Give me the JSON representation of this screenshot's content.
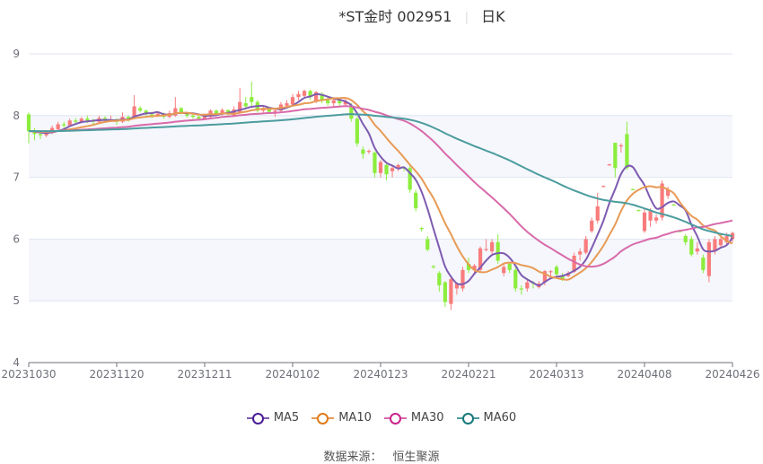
{
  "header": {
    "title": "*ST金时 002951",
    "period": "日K"
  },
  "source": {
    "label": "数据来源：",
    "value": "恒生聚源"
  },
  "colors": {
    "up": "#f87c7c",
    "down": "#8ced3c",
    "grid": "#e0e6f1",
    "band": "#f5f7fc"
  },
  "chart_data": {
    "type": "candlestick",
    "ylim": [
      4,
      9
    ],
    "yticks": [
      4,
      5,
      6,
      7,
      8,
      9
    ],
    "xtick_labels": [
      "20231030",
      "20231120",
      "20231211",
      "20240102",
      "20240123",
      "20240221",
      "20240313",
      "20240408",
      "20240426"
    ],
    "xtick_every": 15,
    "grid": true,
    "legend_position": "bottom",
    "ohlc_format": [
      "open",
      "close",
      "low",
      "high"
    ],
    "candles": [
      [
        8.02,
        7.75,
        7.55,
        8.05
      ],
      [
        7.75,
        7.7,
        7.6,
        7.8
      ],
      [
        7.7,
        7.68,
        7.62,
        7.74
      ],
      [
        7.68,
        7.72,
        7.65,
        7.76
      ],
      [
        7.72,
        7.8,
        7.7,
        7.84
      ],
      [
        7.78,
        7.86,
        7.75,
        7.9
      ],
      [
        7.86,
        7.84,
        7.8,
        7.9
      ],
      [
        7.84,
        7.92,
        7.82,
        7.95
      ],
      [
        7.92,
        7.9,
        7.86,
        7.96
      ],
      [
        7.9,
        7.95,
        7.88,
        7.98
      ],
      [
        7.95,
        7.92,
        7.88,
        8.0
      ],
      [
        7.92,
        7.9,
        7.86,
        7.95
      ],
      [
        7.9,
        7.96,
        7.88,
        8.0
      ],
      [
        7.96,
        7.92,
        7.9,
        7.99
      ],
      [
        7.92,
        7.94,
        7.9,
        8.0
      ],
      [
        7.94,
        7.9,
        7.85,
        7.96
      ],
      [
        7.9,
        7.98,
        7.88,
        8.05
      ],
      [
        7.98,
        7.95,
        7.9,
        8.0
      ],
      [
        7.95,
        8.15,
        7.94,
        8.33
      ],
      [
        8.12,
        8.08,
        8.05,
        8.15
      ],
      [
        8.08,
        8.02,
        8.0,
        8.1
      ],
      [
        8.02,
        8.0,
        7.96,
        8.06
      ],
      [
        8.0,
        8.03,
        7.98,
        8.06
      ],
      [
        8.03,
        7.98,
        7.95,
        8.05
      ],
      [
        7.98,
        8.04,
        7.96,
        8.08
      ],
      [
        8.0,
        8.12,
        7.98,
        8.3
      ],
      [
        8.12,
        8.05,
        8.02,
        8.14
      ],
      [
        8.05,
        8.0,
        7.97,
        8.06
      ],
      [
        8.0,
        7.98,
        7.95,
        8.02
      ],
      [
        7.98,
        7.95,
        7.92,
        8.0
      ],
      [
        7.95,
        8.0,
        7.93,
        8.03
      ],
      [
        7.98,
        8.08,
        7.96,
        8.1
      ],
      [
        8.08,
        8.03,
        8.0,
        8.1
      ],
      [
        8.03,
        8.09,
        8.0,
        8.12
      ],
      [
        8.09,
        8.02,
        7.98,
        8.1
      ],
      [
        8.0,
        8.1,
        7.98,
        8.15
      ],
      [
        8.05,
        8.22,
        8.03,
        8.45
      ],
      [
        8.2,
        8.15,
        8.1,
        8.3
      ],
      [
        8.3,
        8.22,
        8.15,
        8.55
      ],
      [
        8.22,
        8.08,
        8.05,
        8.25
      ],
      [
        8.08,
        8.12,
        8.05,
        8.15
      ],
      [
        8.12,
        8.06,
        8.03,
        8.15
      ],
      [
        8.06,
        8.08,
        7.98,
        8.12
      ],
      [
        8.08,
        8.18,
        8.05,
        8.22
      ],
      [
        8.16,
        8.2,
        8.12,
        8.25
      ],
      [
        8.18,
        8.3,
        8.16,
        8.35
      ],
      [
        8.3,
        8.35,
        8.25,
        8.4
      ],
      [
        8.32,
        8.4,
        8.28,
        8.42
      ],
      [
        8.4,
        8.3,
        8.25,
        8.42
      ],
      [
        8.22,
        8.38,
        8.2,
        8.4
      ],
      [
        8.35,
        8.25,
        8.2,
        8.38
      ],
      [
        8.25,
        8.2,
        8.16,
        8.3
      ],
      [
        8.2,
        8.25,
        8.15,
        8.3
      ],
      [
        8.25,
        8.2,
        8.15,
        8.28
      ],
      [
        8.18,
        8.24,
        8.15,
        8.28
      ],
      [
        8.15,
        7.95,
        7.9,
        8.2
      ],
      [
        7.95,
        7.55,
        7.5,
        7.98
      ],
      [
        7.45,
        7.38,
        7.3,
        7.5
      ],
      [
        7.42,
        7.43,
        7.38,
        7.45
      ],
      [
        7.4,
        7.07,
        7.0,
        7.42
      ],
      [
        7.07,
        7.25,
        7.0,
        7.28
      ],
      [
        7.2,
        7.05,
        6.95,
        7.25
      ],
      [
        7.1,
        7.15,
        7.0,
        7.2
      ],
      [
        7.15,
        7.2,
        7.1,
        7.22
      ],
      [
        7.16,
        7.15,
        7.1,
        7.18
      ],
      [
        7.15,
        6.8,
        6.75,
        7.2
      ],
      [
        6.75,
        6.5,
        6.45,
        6.8
      ],
      [
        6.18,
        6.17,
        6.12,
        6.2
      ],
      [
        6.0,
        5.83,
        5.8,
        6.05
      ],
      [
        5.56,
        5.55,
        5.52,
        5.58
      ],
      [
        5.45,
        5.25,
        5.15,
        5.48
      ],
      [
        5.3,
        4.98,
        4.9,
        5.32
      ],
      [
        4.95,
        5.35,
        4.85,
        5.4
      ],
      [
        5.2,
        5.28,
        5.1,
        5.3
      ],
      [
        5.2,
        5.5,
        5.15,
        5.55
      ],
      [
        5.6,
        5.5,
        5.45,
        5.7
      ],
      [
        5.5,
        5.57,
        5.45,
        5.6
      ],
      [
        5.5,
        5.85,
        5.48,
        5.88
      ],
      [
        5.83,
        5.84,
        5.8,
        6.0
      ],
      [
        5.8,
        5.95,
        5.75,
        6.0
      ],
      [
        5.95,
        5.65,
        5.6,
        6.08
      ],
      [
        5.45,
        5.55,
        5.4,
        5.6
      ],
      [
        5.6,
        5.5,
        5.45,
        5.62
      ],
      [
        5.5,
        5.2,
        5.15,
        5.55
      ],
      [
        5.2,
        5.19,
        5.1,
        5.25
      ],
      [
        5.2,
        5.3,
        5.15,
        5.35
      ],
      [
        5.3,
        5.28,
        5.2,
        5.32
      ],
      [
        5.22,
        5.28,
        5.2,
        5.32
      ],
      [
        5.3,
        5.48,
        5.25,
        5.5
      ],
      [
        5.47,
        5.48,
        5.4,
        5.5
      ],
      [
        5.55,
        5.43,
        5.4,
        5.58
      ],
      [
        5.4,
        5.35,
        5.32,
        5.45
      ],
      [
        5.4,
        5.45,
        5.38,
        5.48
      ],
      [
        5.47,
        5.73,
        5.45,
        5.78
      ],
      [
        5.75,
        5.8,
        5.65,
        5.85
      ],
      [
        5.78,
        6.0,
        5.75,
        6.05
      ],
      [
        6.13,
        6.3,
        6.1,
        6.35
      ],
      [
        6.3,
        6.53,
        6.25,
        6.75
      ],
      [
        6.85,
        6.86,
        6.84,
        6.87
      ],
      [
        7.2,
        7.21,
        7.19,
        7.22
      ],
      [
        7.56,
        7.15,
        7.0,
        7.56
      ],
      [
        7.5,
        7.52,
        7.4,
        7.55
      ],
      [
        7.7,
        7.15,
        7.12,
        7.9
      ],
      [
        6.81,
        6.8,
        6.79,
        6.82
      ],
      [
        6.47,
        6.46,
        6.45,
        6.48
      ],
      [
        6.13,
        6.43,
        6.1,
        6.5
      ],
      [
        6.3,
        6.45,
        6.2,
        6.5
      ],
      [
        6.3,
        6.35,
        6.25,
        6.4
      ],
      [
        6.35,
        6.9,
        6.3,
        6.95
      ],
      [
        6.7,
        6.8,
        6.65,
        6.85
      ],
      [
        6.56,
        6.55,
        6.54,
        6.57
      ],
      [
        6.13,
        6.12,
        6.11,
        6.14
      ],
      [
        6.05,
        5.95,
        5.9,
        6.08
      ],
      [
        6.0,
        5.75,
        5.72,
        6.05
      ],
      [
        5.8,
        5.85,
        5.75,
        5.95
      ],
      [
        5.7,
        5.5,
        5.45,
        5.75
      ],
      [
        5.4,
        5.95,
        5.3,
        6.0
      ],
      [
        5.8,
        6.0,
        5.75,
        6.05
      ],
      [
        5.9,
        6.0,
        5.85,
        6.1
      ],
      [
        5.95,
        6.05,
        5.9,
        6.1
      ],
      [
        6.0,
        6.1,
        5.95,
        6.12
      ]
    ],
    "moving_averages": [
      {
        "name": "MA5",
        "period": 5,
        "color": "#7e5bb0",
        "marker": "#4a1d96"
      },
      {
        "name": "MA10",
        "period": 10,
        "color": "#e89a55",
        "marker": "#e07b1a"
      },
      {
        "name": "MA30",
        "period": 30,
        "color": "#d86aaa",
        "marker": "#c9238a"
      },
      {
        "name": "MA60",
        "period": 60,
        "color": "#4c9c9e",
        "marker": "#16797a"
      }
    ]
  }
}
